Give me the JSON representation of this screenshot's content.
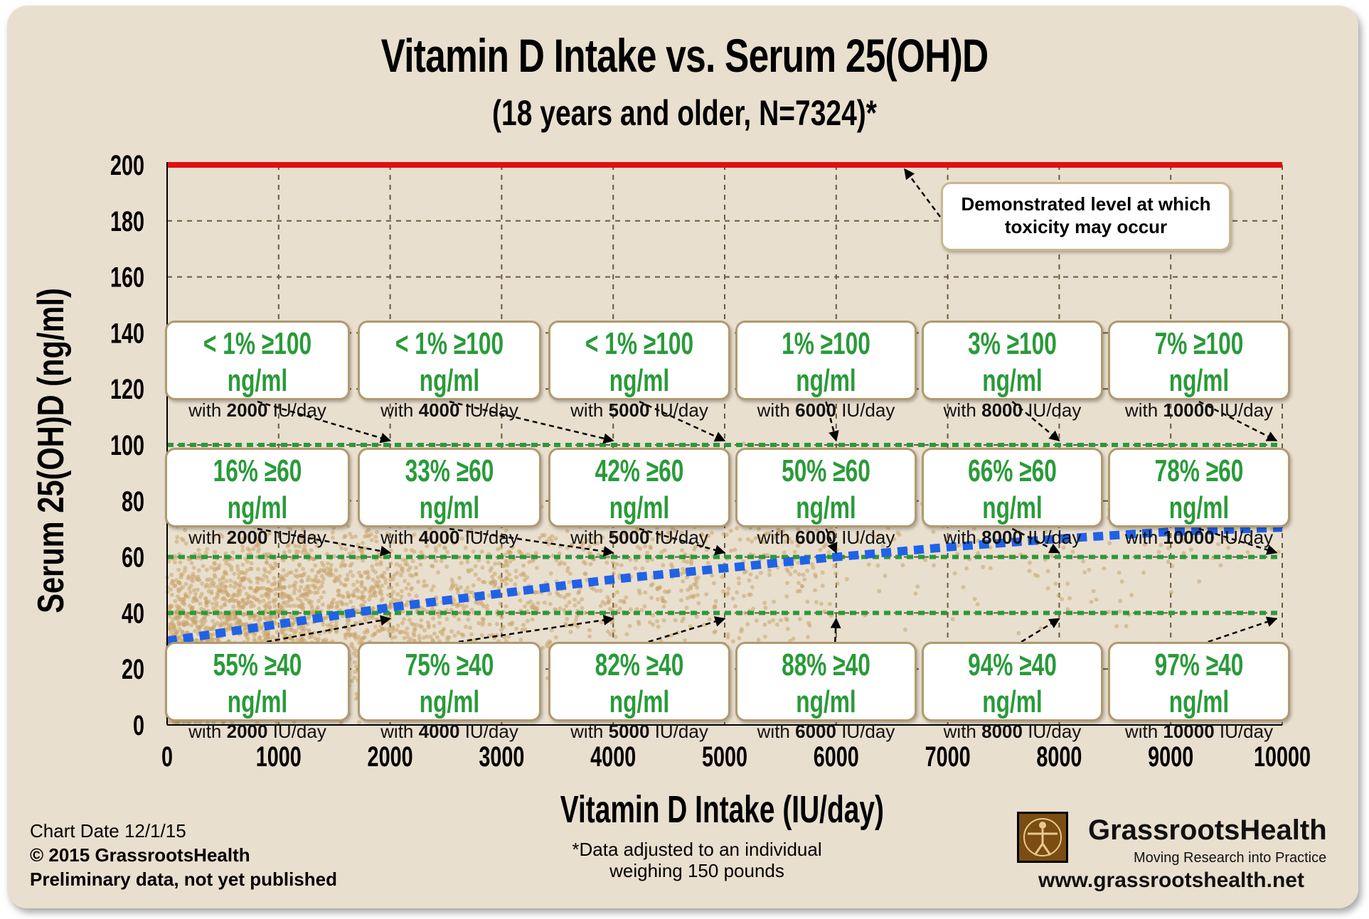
{
  "chart_data": {
    "type": "scatter",
    "title": "Vitamin D Intake vs. Serum 25(OH)D",
    "subtitle": "(18 years and older, N=7324)*",
    "xlabel": "Vitamin D Intake (IU/day)",
    "ylabel": "Serum 25(OH)D (ng/ml)",
    "xlim": [
      0,
      10000
    ],
    "ylim": [
      0,
      200
    ],
    "x_ticks": [
      "0",
      "1000",
      "2000",
      "3000",
      "4000",
      "5000",
      "6000",
      "7000",
      "8000",
      "9000",
      "10000"
    ],
    "y_ticks": [
      "0",
      "20",
      "40",
      "60",
      "80",
      "100",
      "120",
      "140",
      "160",
      "180",
      "200"
    ],
    "grid": true,
    "colors": {
      "scatter": "#c9a46a",
      "trend": "#1f62e8",
      "threshold": "#2a9a3a",
      "toxicity": "#e01010",
      "label_green": "#2a9a3a"
    },
    "trend_line": {
      "x": [
        0,
        1000,
        2000,
        3000,
        4000,
        5000,
        6000,
        7000,
        8000,
        9000,
        10000
      ],
      "y": [
        30,
        36,
        42,
        47,
        52,
        56,
        60,
        63.5,
        66.5,
        69,
        70.5
      ]
    },
    "reference_lines": [
      {
        "y": 40,
        "style": "dotted"
      },
      {
        "y": 60,
        "style": "dotted"
      },
      {
        "y": 100,
        "style": "dotted"
      },
      {
        "y": 200,
        "style": "solid"
      }
    ],
    "annotations_100": [
      {
        "pct": "< 1% ≥100 ng/ml",
        "dose": "2000",
        "x": 2000
      },
      {
        "pct": "< 1% ≥100 ng/ml",
        "dose": "4000",
        "x": 4000
      },
      {
        "pct": "< 1% ≥100 ng/ml",
        "dose": "5000",
        "x": 5000
      },
      {
        "pct": "1% ≥100 ng/ml",
        "dose": "6000",
        "x": 6000
      },
      {
        "pct": "3% ≥100 ng/ml",
        "dose": "8000",
        "x": 8000
      },
      {
        "pct": "7% ≥100 ng/ml",
        "dose": "10000",
        "x": 10000
      }
    ],
    "annotations_60": [
      {
        "pct": "16% ≥60 ng/ml",
        "dose": "2000",
        "x": 2000
      },
      {
        "pct": "33% ≥60 ng/ml",
        "dose": "4000",
        "x": 4000
      },
      {
        "pct": "42% ≥60 ng/ml",
        "dose": "5000",
        "x": 5000
      },
      {
        "pct": "50% ≥60 ng/ml",
        "dose": "6000",
        "x": 6000
      },
      {
        "pct": "66% ≥60 ng/ml",
        "dose": "8000",
        "x": 8000
      },
      {
        "pct": "78% ≥60 ng/ml",
        "dose": "10000",
        "x": 10000
      }
    ],
    "annotations_40": [
      {
        "pct": "55% ≥40 ng/ml",
        "dose": "2000",
        "x": 2000
      },
      {
        "pct": "75% ≥40 ng/ml",
        "dose": "4000",
        "x": 4000
      },
      {
        "pct": "82% ≥40 ng/ml",
        "dose": "5000",
        "x": 5000
      },
      {
        "pct": "88% ≥40 ng/ml",
        "dose": "6000",
        "x": 6000
      },
      {
        "pct": "94% ≥40 ng/ml",
        "dose": "8000",
        "x": 8000
      },
      {
        "pct": "97% ≥40 ng/ml",
        "dose": "10000",
        "x": 10000
      }
    ],
    "annotation_with": "with",
    "annotation_unit": "IU/day",
    "toxicity_label": [
      "Demonstrated level at which",
      "toxicity may occur"
    ]
  },
  "footer": {
    "chart_date": "Chart Date 12/1/15",
    "copyright": "© 2015 GrassrootsHealth",
    "preliminary": "Preliminary data, not yet published",
    "footnote": "*Data adjusted to an individual weighing 150 pounds",
    "logo_name": "GrassrootsHealth",
    "logo_tagline": "Moving Research into Practice",
    "url": "www.grassrootshealth.net"
  }
}
